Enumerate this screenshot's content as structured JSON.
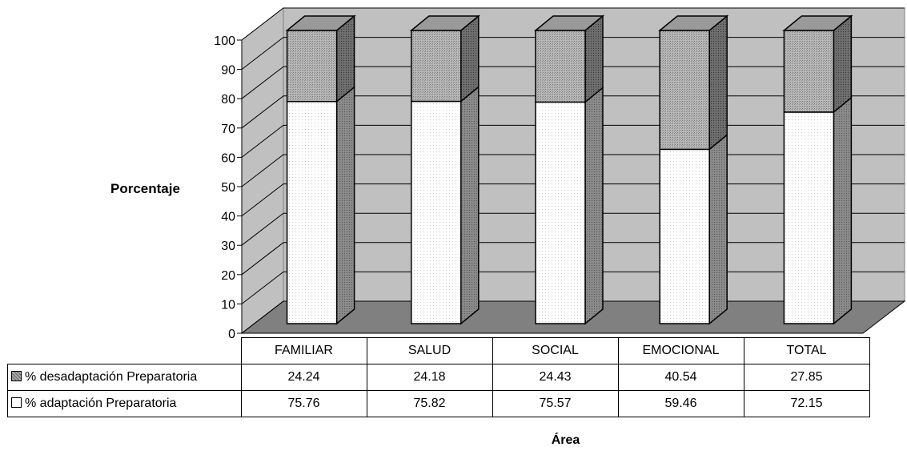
{
  "chart_data": {
    "type": "bar",
    "stacked": true,
    "three_d": true,
    "categories": [
      "FAMILIAR",
      "SALUD",
      "SOCIAL",
      "EMOCIONAL",
      "TOTAL"
    ],
    "series": [
      {
        "name": "% adaptación Preparatoria",
        "values": [
          75.76,
          75.82,
          75.57,
          59.46,
          72.15
        ],
        "color": "#ffffff"
      },
      {
        "name": "% desadaptación Preparatoria",
        "values": [
          24.24,
          24.18,
          24.43,
          40.54,
          27.85
        ],
        "color": "#aaaaaa"
      }
    ],
    "data_table": [
      {
        "label": "% desadaptación Preparatoria",
        "cells": [
          "24.24",
          "24.18",
          "24.43",
          "40.54",
          "27.85"
        ]
      },
      {
        "label": "% adaptación Preparatoria",
        "cells": [
          "75.76",
          "75.82",
          "75.57",
          "59.46",
          "72.15"
        ]
      }
    ],
    "y_ticks": [
      "0",
      "10",
      "20",
      "30",
      "40",
      "50",
      "60",
      "70",
      "80",
      "90",
      "100"
    ],
    "ylim": [
      0,
      100
    ],
    "ylabel": "Porcentaje",
    "xlabel": "Área",
    "grid": true,
    "legend": "data table"
  }
}
